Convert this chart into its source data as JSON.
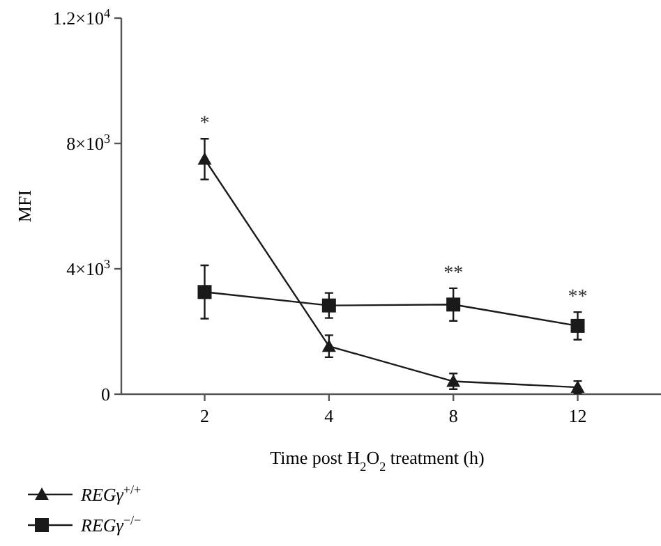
{
  "chart_data": {
    "type": "line",
    "xlabel": "Time post H$_{2}$O$_{2}$ treatment (h)",
    "ylabel": "MFI",
    "categories": [
      "2",
      "4",
      "8",
      "12"
    ],
    "ylim": [
      0,
      12000
    ],
    "yticks": [
      {
        "value": 0,
        "label": "0"
      },
      {
        "value": 4000,
        "label": "4×10$^{3}$"
      },
      {
        "value": 8000,
        "label": "8×10$^{3}$"
      },
      {
        "value": 12000,
        "label": "1.2×10$^{4}$"
      }
    ],
    "series": [
      {
        "name": "REGγ$^{+/+}$",
        "color": "#1a1a1a",
        "marker": "triangle",
        "values": [
          7500,
          1530,
          410,
          220
        ],
        "errors": [
          650,
          350,
          250,
          200
        ]
      },
      {
        "name": "REGγ$^{−/−}$",
        "color": "#1a1a1a",
        "marker": "square",
        "values": [
          3260,
          2830,
          2860,
          2180
        ],
        "errors": [
          850,
          400,
          520,
          440
        ]
      }
    ],
    "annotations": [
      {
        "text": "*",
        "x": "2",
        "y": 7500
      },
      {
        "text": "**",
        "x": "8",
        "y": 2860
      },
      {
        "text": "**",
        "x": "12",
        "y": 2180
      }
    ],
    "grid": false,
    "legend": "bottom left"
  }
}
